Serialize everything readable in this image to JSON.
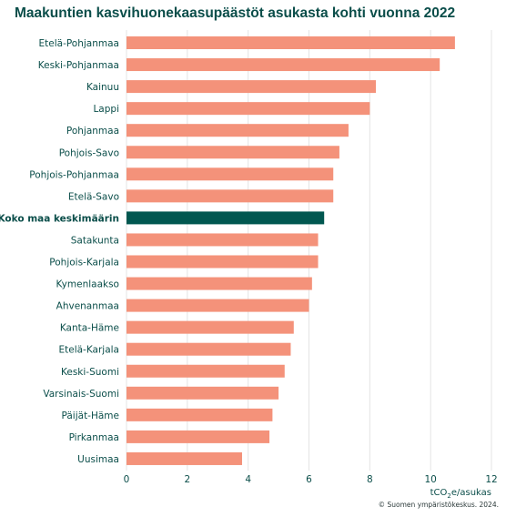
{
  "chart_data": {
    "type": "bar",
    "orientation": "horizontal",
    "title": "Maakuntien kasvihuonekaasupäästöt asukasta kohti vuonna 2022",
    "xlabel_prefix": "tCO",
    "xlabel_sub": "2",
    "xlabel_suffix": "e/asukas",
    "xlim": [
      0,
      12
    ],
    "xticks": [
      0,
      2,
      4,
      6,
      8,
      10,
      12
    ],
    "grid": true,
    "categories": [
      "Etelä-Pohjanmaa",
      "Keski-Pohjanmaa",
      "Kainuu",
      "Lappi",
      "Pohjanmaa",
      "Pohjois-Savo",
      "Pohjois-Pohjanmaa",
      "Etelä-Savo",
      "Koko maa keskimäärin",
      "Satakunta",
      "Pohjois-Karjala",
      "Kymenlaakso",
      "Ahvenanmaa",
      "Kanta-Häme",
      "Etelä-Karjala",
      "Keski-Suomi",
      "Varsinais-Suomi",
      "Päijät-Häme",
      "Pirkanmaa",
      "Uusimaa"
    ],
    "values": [
      10.8,
      10.3,
      8.2,
      8.0,
      7.3,
      7.0,
      6.8,
      6.8,
      6.5,
      6.3,
      6.3,
      6.1,
      6.0,
      5.5,
      5.4,
      5.2,
      5.0,
      4.8,
      4.7,
      3.8
    ],
    "highlight_category": "Koko maa keskimäärin",
    "colors": {
      "bar": "#f4927a",
      "highlight_bar": "#015750",
      "grid": "#e4e4e4",
      "text": "#0b4e4a"
    }
  },
  "source_note": "© Suomen ympäristökeskus. 2024."
}
